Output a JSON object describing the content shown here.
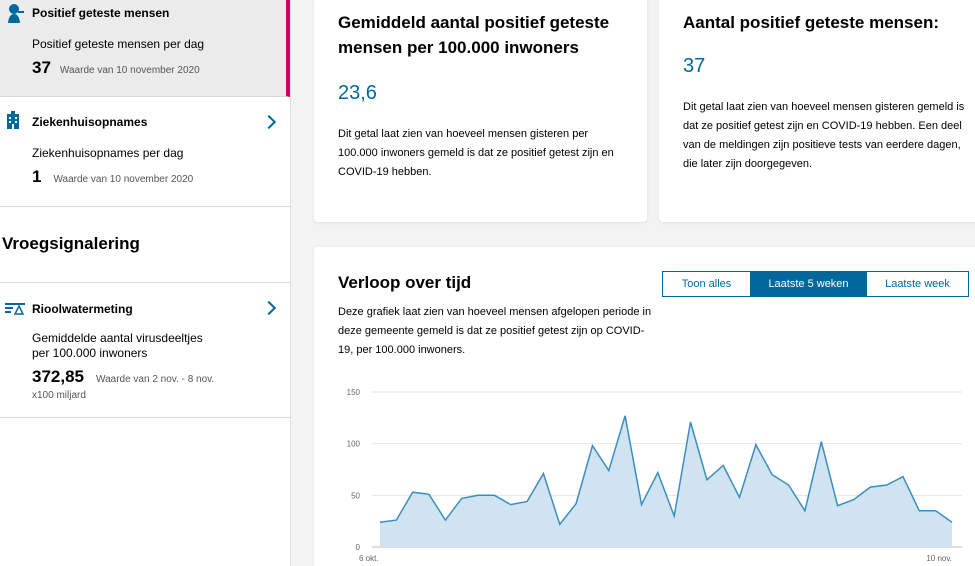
{
  "sidebar": {
    "items": [
      {
        "title": "Positief geteste mensen",
        "sub": "Positief geteste mensen per dag",
        "value": "37",
        "note": "Waarde van 10 november 2020",
        "icon": "person-test-icon"
      },
      {
        "title": "Ziekenhuisopnames",
        "sub": "Ziekenhuisopnames per dag",
        "value": "1",
        "note": "Waarde van 10 november 2020",
        "icon": "hospital-icon"
      }
    ],
    "section_title": "Vroegsignalering",
    "sewer": {
      "title": "Rioolwatermeting",
      "sub": "Gemiddelde aantal virusdeeltjes per 100.000 inwoners",
      "value": "372,85",
      "note": "Waarde van 2 nov. - 8 nov.",
      "unit": "x100 miljard",
      "icon": "sewer-icon"
    }
  },
  "card1": {
    "title": "Gemiddeld aantal positief geteste mensen per 100.000 inwoners",
    "value": "23,6",
    "desc": "Dit getal laat zien van hoeveel mensen gisteren per 100.000 inwoners gemeld is dat ze positief getest zijn en COVID-19 hebben."
  },
  "card2": {
    "title": "Aantal positief geteste mensen:",
    "value": "37",
    "desc": "Dit getal laat zien van hoeveel mensen gisteren gemeld is dat ze positief getest zijn en COVID-19 hebben. Een deel van de meldingen zijn positieve tests van eerdere dagen, die later zijn doorgegeven."
  },
  "chart_card": {
    "title": "Verloop over tijd",
    "desc": "Deze grafiek laat zien van hoeveel mensen afgelopen periode in deze gemeente gemeld is dat ze positief getest zijn op COVID-19, per 100.000 inwoners.",
    "tabs": [
      "Toon alles",
      "Laatste 5 weken",
      "Laatste week"
    ],
    "selected_tab": 1
  },
  "colors": {
    "accent": "#01689b",
    "active_bar": "#cc0066",
    "area_fill": "#cfe3f1",
    "line": "#3c8dc0"
  },
  "chart_data": {
    "type": "area",
    "x_start_label": "6 okt.",
    "x_end_label": "10 nov.",
    "yticks": [
      0,
      50,
      100,
      150
    ],
    "ylim": [
      0,
      150
    ],
    "values": [
      24,
      26,
      53,
      51,
      26,
      47,
      50,
      50,
      41,
      44,
      71,
      22,
      42,
      98,
      74,
      127,
      41,
      72,
      30,
      121,
      65,
      79,
      48,
      99,
      70,
      60,
      35,
      102,
      40,
      46,
      58,
      60,
      68,
      35,
      35,
      24
    ]
  }
}
